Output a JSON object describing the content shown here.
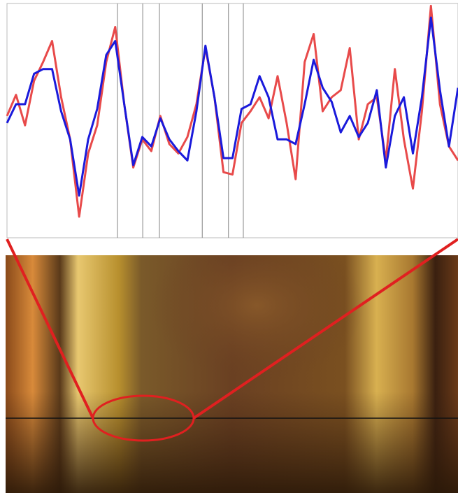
{
  "chart_data": {
    "type": "line",
    "x": [
      0,
      2,
      4,
      6,
      8,
      10,
      12,
      14,
      16,
      18,
      20,
      22,
      24,
      26,
      28,
      30,
      32,
      34,
      36,
      38,
      40,
      42,
      44,
      46,
      48,
      50,
      52,
      54,
      56,
      58,
      60,
      62,
      64,
      66,
      68,
      70,
      72,
      74,
      76,
      78,
      80,
      82,
      84,
      86,
      88,
      90,
      92,
      94,
      96,
      98,
      100
    ],
    "xlim": [
      0,
      100
    ],
    "ylim": [
      0,
      100
    ],
    "vlines": [
      24.5,
      30.1,
      33.8,
      43.3,
      49.1,
      52.4
    ],
    "vline_color": "#999999",
    "series": [
      {
        "color": "#e84a4a",
        "values": [
          52,
          61,
          48,
          67,
          75,
          84,
          60,
          42,
          9,
          36,
          48,
          75,
          90,
          57,
          30,
          42,
          37,
          52,
          40,
          36,
          43,
          57,
          81,
          60,
          28,
          27,
          49,
          54,
          60,
          51,
          69,
          49,
          25,
          75,
          87,
          54,
          60,
          63,
          81,
          42,
          57,
          60,
          33,
          72,
          42,
          21,
          54,
          99,
          57,
          39,
          33
        ]
      },
      {
        "color": "#1a1adb",
        "values": [
          49,
          57,
          57,
          70,
          72,
          72,
          54,
          42,
          18,
          42,
          55,
          78,
          84,
          57,
          31,
          43,
          39,
          51,
          42,
          37,
          33,
          54,
          82,
          60,
          34,
          34,
          55,
          57,
          69,
          60,
          42,
          42,
          40,
          57,
          76,
          64,
          58,
          45,
          52,
          43,
          49,
          63,
          30,
          52,
          60,
          36,
          60,
          94,
          63,
          39,
          64
        ]
      }
    ]
  }
}
